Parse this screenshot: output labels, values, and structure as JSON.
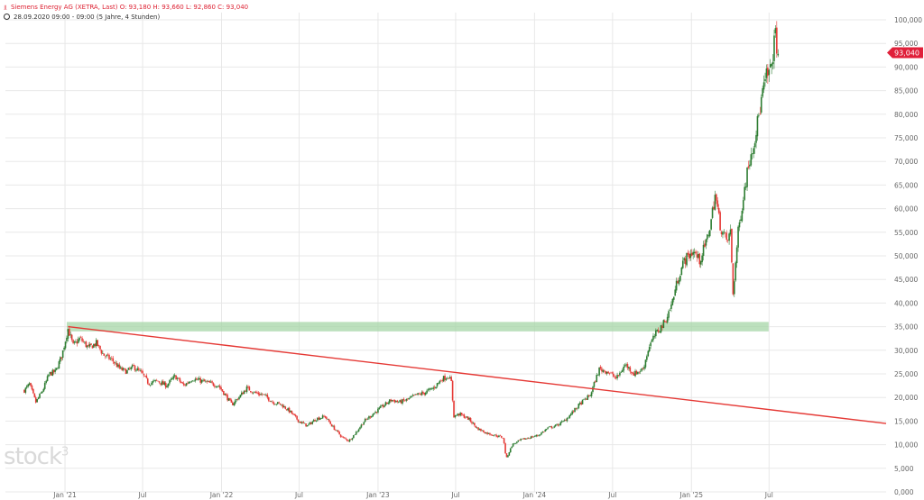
{
  "header": {
    "line1": "Siemens Energy AG (XETRA, Last)  O: 93,180  H: 93,660  L: 92,860  C: 93,040",
    "line2": "28.09.2020 09:00 - 09:00  (5 Jahre, 4 Stunden)",
    "instrument_icon": "candle-icon",
    "clock_icon": "clock-icon"
  },
  "watermark": {
    "text": "stock",
    "sup": "3"
  },
  "colors": {
    "up": "#2e7d32",
    "down": "#e53935",
    "trendline": "#e53935",
    "zone": "#a5d6a7",
    "last_badge": "#e0203a",
    "grid": "#e8e8e8",
    "axis_text": "#666666"
  },
  "chart_data": {
    "type": "candlestick",
    "x_ticks": [
      "Jan '21",
      "Jul",
      "Jan '22",
      "Jul",
      "Jan '23",
      "Jul",
      "Jan '24",
      "Jul",
      "Jan '25",
      "Jul"
    ],
    "y_ticks": [
      "0,000",
      "5,000",
      "10,000",
      "15,000",
      "20,000",
      "25,000",
      "30,000",
      "35,000",
      "40,000",
      "45,000",
      "50,000",
      "55,000",
      "60,000",
      "65,000",
      "70,000",
      "75,000",
      "80,000",
      "85,000",
      "90,000",
      "95,000",
      "100,000"
    ],
    "ylim": [
      0,
      100
    ],
    "grid": true,
    "last_price_label": "93,040",
    "last_price": 93.04,
    "price_path": [
      [
        "2020-09-28",
        21.5
      ],
      [
        "2020-10-10",
        22.8
      ],
      [
        "2020-10-25",
        19.0
      ],
      [
        "2020-11-10",
        21.5
      ],
      [
        "2020-11-25",
        25.0
      ],
      [
        "2020-12-10",
        25.5
      ],
      [
        "2020-12-25",
        29.0
      ],
      [
        "2021-01-08",
        34.5
      ],
      [
        "2021-01-20",
        31.0
      ],
      [
        "2021-02-05",
        32.5
      ],
      [
        "2021-02-25",
        30.5
      ],
      [
        "2021-03-15",
        31.5
      ],
      [
        "2021-04-01",
        29.0
      ],
      [
        "2021-04-20",
        28.0
      ],
      [
        "2021-05-10",
        26.0
      ],
      [
        "2021-05-25",
        25.5
      ],
      [
        "2021-06-10",
        26.5
      ],
      [
        "2021-06-30",
        25.0
      ],
      [
        "2021-07-15",
        23.0
      ],
      [
        "2021-08-05",
        23.5
      ],
      [
        "2021-08-25",
        22.5
      ],
      [
        "2021-09-15",
        24.5
      ],
      [
        "2021-10-05",
        22.5
      ],
      [
        "2021-10-25",
        24.0
      ],
      [
        "2021-11-15",
        23.5
      ],
      [
        "2021-12-05",
        23.0
      ],
      [
        "2021-12-25",
        22.5
      ],
      [
        "2022-01-10",
        20.5
      ],
      [
        "2022-01-25",
        18.5
      ],
      [
        "2022-02-10",
        20.0
      ],
      [
        "2022-03-01",
        22.0
      ],
      [
        "2022-03-20",
        21.0
      ],
      [
        "2022-04-10",
        20.5
      ],
      [
        "2022-05-01",
        19.0
      ],
      [
        "2022-05-20",
        18.5
      ],
      [
        "2022-06-10",
        17.0
      ],
      [
        "2022-06-30",
        15.0
      ],
      [
        "2022-07-20",
        14.0
      ],
      [
        "2022-08-10",
        15.5
      ],
      [
        "2022-08-30",
        16.0
      ],
      [
        "2022-09-20",
        13.5
      ],
      [
        "2022-10-10",
        11.5
      ],
      [
        "2022-10-25",
        10.8
      ],
      [
        "2022-11-10",
        12.5
      ],
      [
        "2022-11-30",
        15.0
      ],
      [
        "2022-12-20",
        16.5
      ],
      [
        "2023-01-10",
        18.0
      ],
      [
        "2023-02-01",
        19.5
      ],
      [
        "2023-02-20",
        19.0
      ],
      [
        "2023-03-10",
        19.5
      ],
      [
        "2023-03-31",
        20.5
      ],
      [
        "2023-04-20",
        21.0
      ],
      [
        "2023-05-10",
        22.0
      ],
      [
        "2023-05-31",
        24.0
      ],
      [
        "2023-06-15",
        24.5
      ],
      [
        "2023-06-22",
        23.0
      ],
      [
        "2023-06-26",
        16.0
      ],
      [
        "2023-07-10",
        16.5
      ],
      [
        "2023-07-31",
        15.5
      ],
      [
        "2023-08-20",
        13.5
      ],
      [
        "2023-09-10",
        12.5
      ],
      [
        "2023-09-30",
        12.0
      ],
      [
        "2023-10-20",
        11.5
      ],
      [
        "2023-10-27",
        7.0
      ],
      [
        "2023-11-10",
        10.0
      ],
      [
        "2023-11-30",
        11.0
      ],
      [
        "2023-12-20",
        11.5
      ],
      [
        "2024-01-10",
        12.0
      ],
      [
        "2024-02-01",
        13.5
      ],
      [
        "2024-02-20",
        14.0
      ],
      [
        "2024-03-10",
        15.0
      ],
      [
        "2024-03-31",
        17.0
      ],
      [
        "2024-04-20",
        19.0
      ],
      [
        "2024-05-10",
        20.5
      ],
      [
        "2024-05-31",
        26.0
      ],
      [
        "2024-06-20",
        25.5
      ],
      [
        "2024-07-10",
        24.0
      ],
      [
        "2024-07-31",
        27.0
      ],
      [
        "2024-08-20",
        25.0
      ],
      [
        "2024-09-10",
        26.0
      ],
      [
        "2024-09-25",
        31.0
      ],
      [
        "2024-10-10",
        33.5
      ],
      [
        "2024-10-31",
        36.0
      ],
      [
        "2024-11-15",
        39.5
      ],
      [
        "2024-11-30",
        45.0
      ],
      [
        "2024-12-15",
        49.0
      ],
      [
        "2025-01-05",
        51.0
      ],
      [
        "2025-01-20",
        49.0
      ],
      [
        "2025-02-05",
        53.0
      ],
      [
        "2025-02-15",
        57.0
      ],
      [
        "2025-02-25",
        63.0
      ],
      [
        "2025-03-10",
        56.0
      ],
      [
        "2025-03-25",
        53.0
      ],
      [
        "2025-04-02",
        55.0
      ],
      [
        "2025-04-08",
        42.0
      ],
      [
        "2025-04-20",
        55.0
      ],
      [
        "2025-05-01",
        62.0
      ],
      [
        "2025-05-15",
        70.0
      ],
      [
        "2025-05-31",
        76.0
      ],
      [
        "2025-06-15",
        84.0
      ],
      [
        "2025-06-25",
        88.0
      ],
      [
        "2025-07-05",
        89.0
      ],
      [
        "2025-07-15",
        97.0
      ],
      [
        "2025-07-22",
        93.04
      ]
    ],
    "trendline": {
      "start": [
        "2021-01-08",
        35.0
      ],
      "end": [
        "2026-03-31",
        14.5
      ]
    },
    "zone": {
      "from": "2021-01-05",
      "to": "2025-06-30",
      "low": 34.0,
      "high": 36.0
    },
    "x_range": [
      "2020-08-15",
      "2026-03-31"
    ]
  }
}
